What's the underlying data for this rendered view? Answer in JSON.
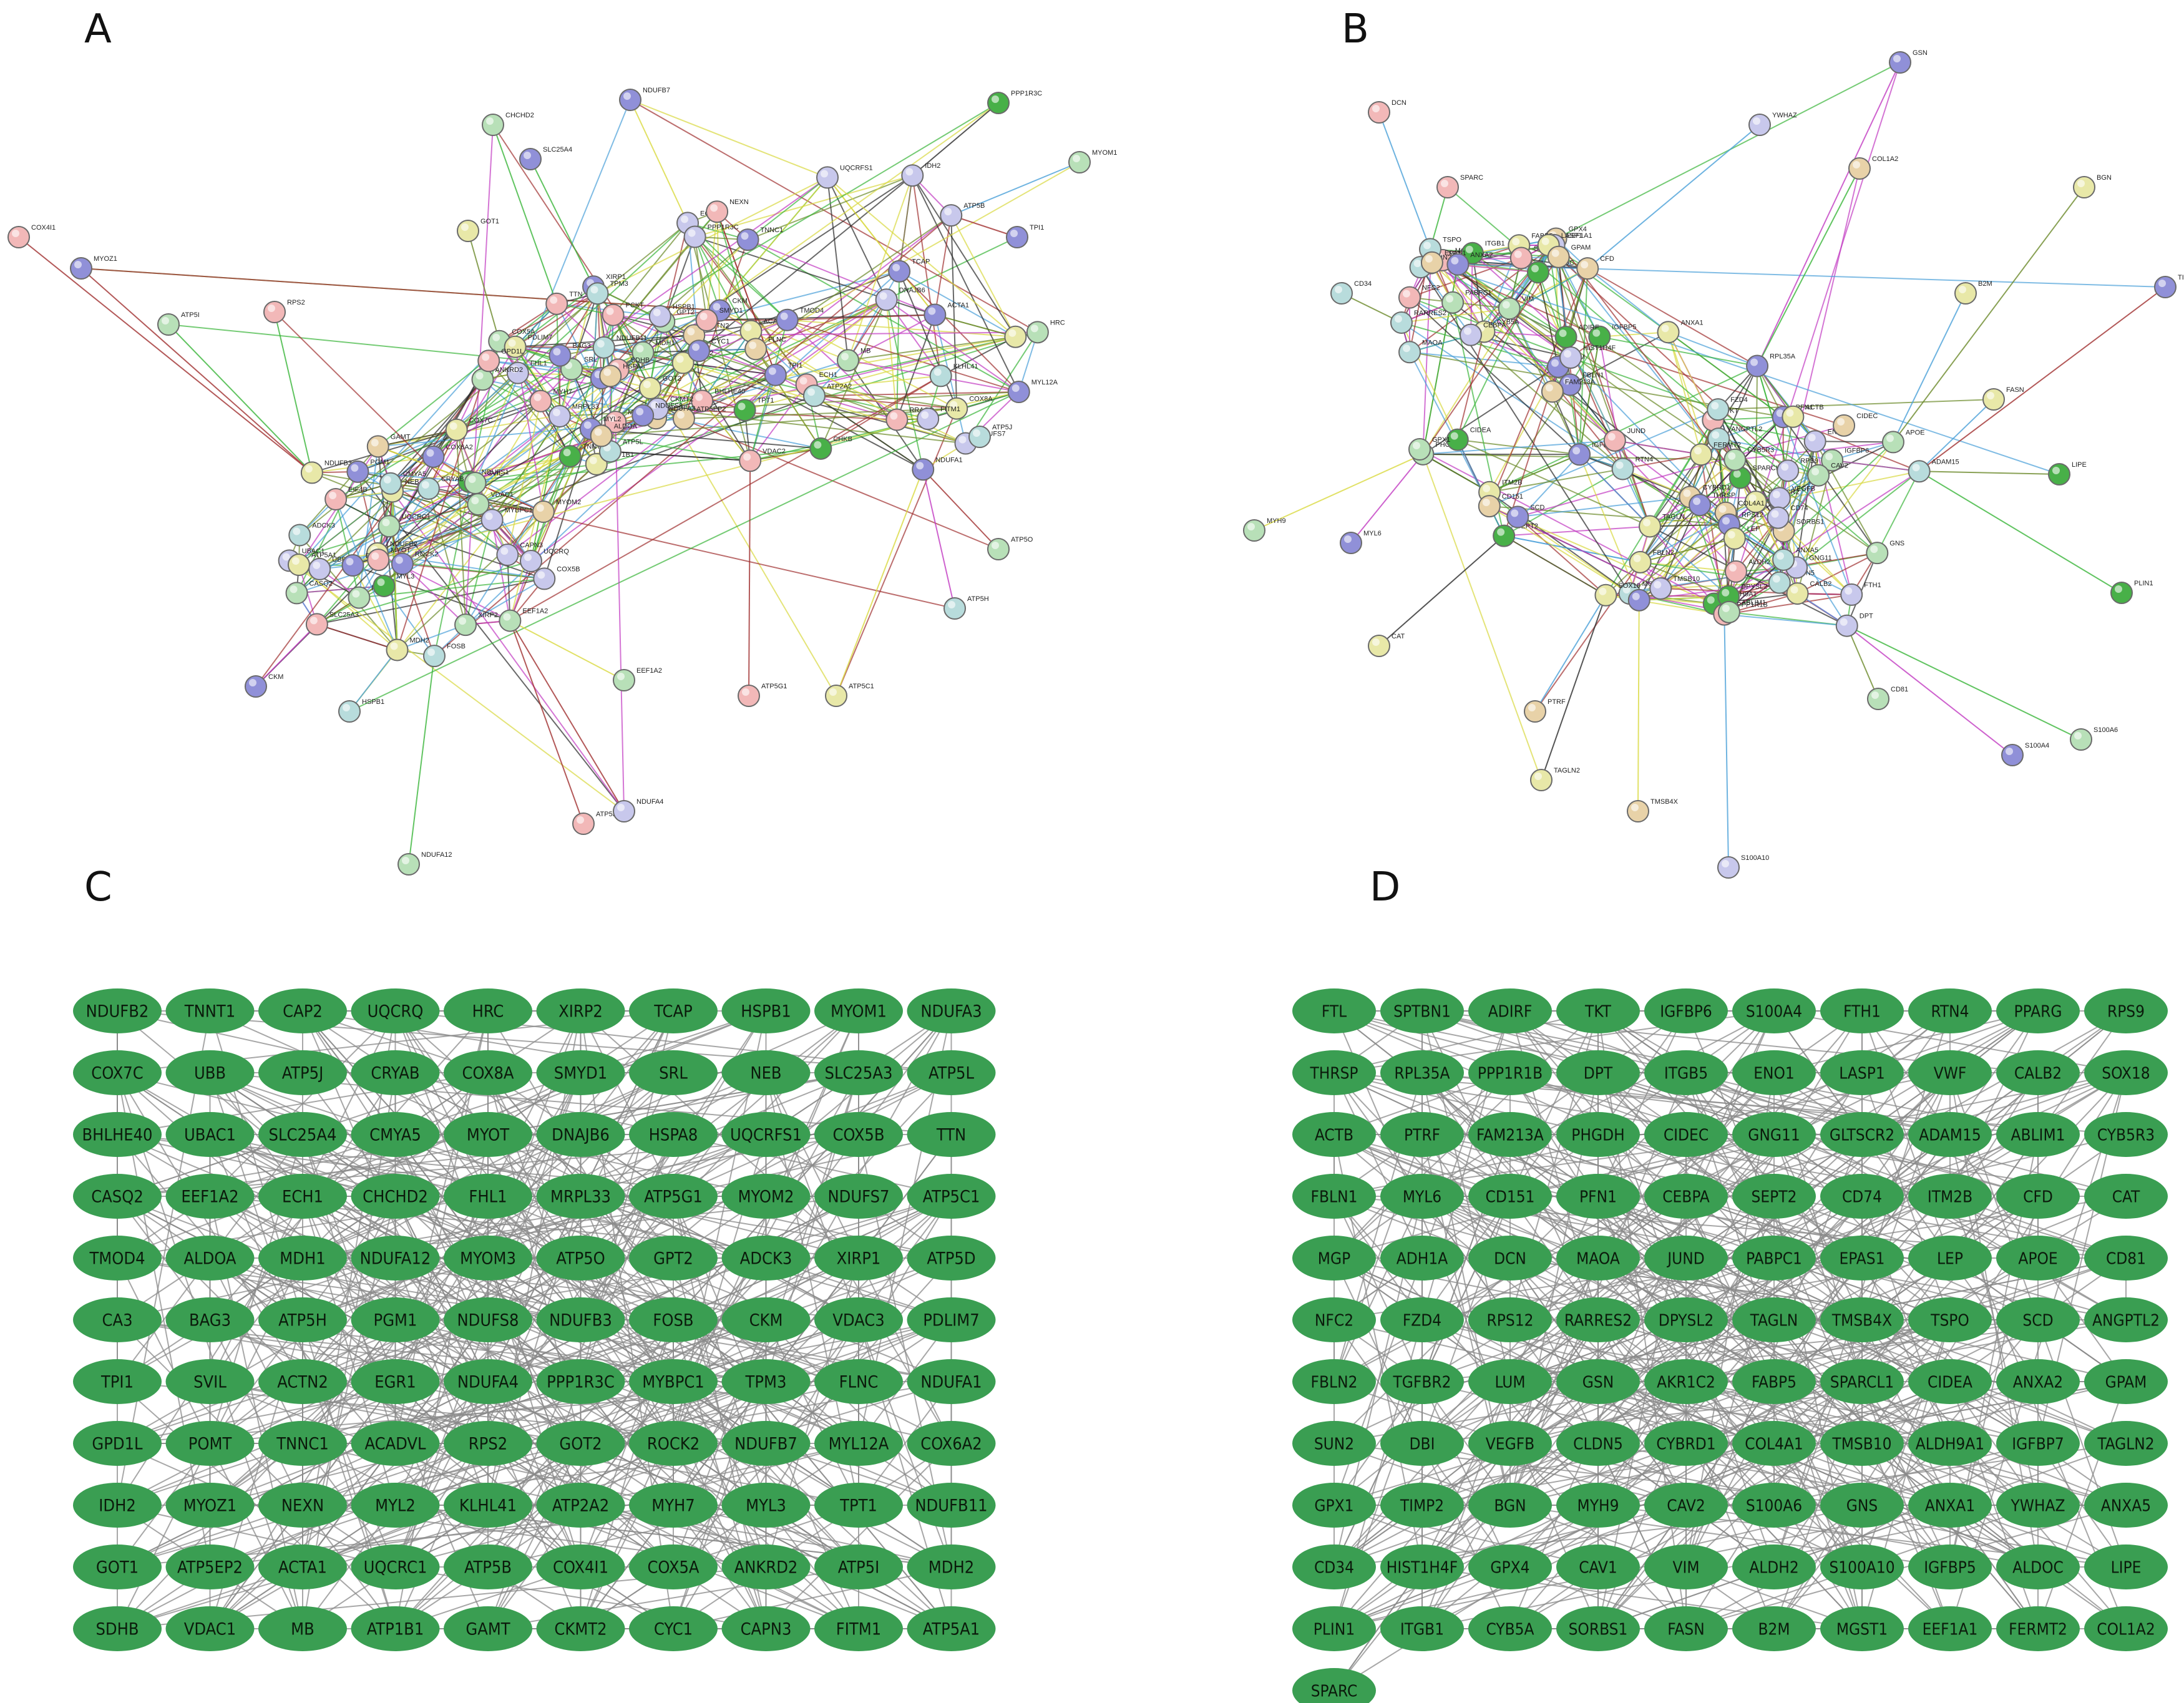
{
  "panels": {
    "A": "A",
    "B": "B",
    "C": "C",
    "D": "D"
  },
  "colors": {
    "grid_node": "#3a9e52",
    "grid_edge": "#8a8a8a",
    "string_edges": [
      "#c23bc2",
      "#3ab53a",
      "#2a2a2a",
      "#d9d940",
      "#6b8a2a",
      "#4aa0d8",
      "#a03030"
    ],
    "string_nodes": [
      "#b8e0b8",
      "#c8c8ec",
      "#e8d2a8",
      "#f2b8b8",
      "#b8dcdc",
      "#e8e8a8",
      "#9090d8",
      "#48b048"
    ]
  },
  "network_A": {
    "nodes": [
      "FOSB",
      "EGR1",
      "BHLHE40",
      "ROCK2",
      "MYL12A",
      "CAP2",
      "UBB",
      "PPP1R3C",
      "PCKT",
      "UBAC1",
      "TPT1",
      "ATP5EP2",
      "NDUFS1",
      "NDUFA1",
      "NDUFA3",
      "NDUFB2",
      "COX8A",
      "NDUFB11",
      "NDUFB3",
      "CHKB",
      "MRPL33",
      "ADCK3",
      "ECH1",
      "GPT2",
      "SLC25A3",
      "ACADVL",
      "ATP1B1",
      "EIF4B",
      "RRAGD",
      "CA3",
      "GAMT",
      "FITM1",
      "XIRP1",
      "MPZ",
      "NEXN",
      "FHL1",
      "COX7C",
      "VDAC2",
      "MYOM3",
      "MYOM2",
      "MB",
      "TNNT1",
      "CRYAB",
      "HSPB1",
      "MYH7",
      "MYL3",
      "TCAP",
      "TTN",
      "DES",
      "CKM",
      "CKMT2",
      "ATP5A1",
      "ATP5B",
      "ATP5L",
      "UQCRC1",
      "UQCRFS1",
      "COX5A",
      "COX5B",
      "GOT2",
      "MDH1",
      "MDH2",
      "IDH2",
      "SDHB",
      "VDAC1",
      "ACTA1",
      "ACTN2",
      "PGM1",
      "TPI1",
      "HSPA8",
      "EEF1A2",
      "KLHL41",
      "ANKRD2",
      "XIRP2",
      "SMYD1",
      "SRL",
      "NEB",
      "FLNC",
      "TPM3",
      "MYOT",
      "DNAJB6",
      "BAG3",
      "SVIL",
      "TNNC1",
      "MYL2",
      "CMYA5",
      "LDB3",
      "PDLIM7",
      "COX6A2",
      "ATP2A2",
      "CYC1",
      "CAPN3",
      "TMOD4",
      "GPD1L",
      "CASQ2",
      "HRC",
      "ALDOA",
      "MYBPC1",
      "NDUFS7",
      "NDUFS8",
      "UQCRQ",
      "COX4I1",
      "MYOZ1",
      "ATP5I",
      "ATP5J",
      "ATP5O",
      "ATP5H",
      "ATP5G1",
      "ATP5C1",
      "ATP5D",
      "NDUFA4",
      "NDUFA12",
      "NDUFB7",
      "CHCHD2",
      "SLC25A4",
      "GOT1",
      "RPS2",
      "PPP1R3C",
      "MYOM1",
      "TPI1",
      "CKM",
      "HSPB1",
      "EEF1A2"
    ],
    "edge_count": 600
  },
  "network_B": {
    "nodes": [
      "RTN4",
      "IGFBP6",
      "IGFBP5",
      "IGFBP7",
      "DPT",
      "MAOA",
      "ALDH9A1",
      "DPYSL2",
      "AKR1C2",
      "GLTSCR2",
      "SPARCL1",
      "LUM",
      "MGP",
      "ALDH2",
      "GPX4",
      "PHGDH",
      "TKT",
      "PABPC1",
      "RPL35A",
      "GNS",
      "FBLN1",
      "FBLN2",
      "COL4A1",
      "MGST1",
      "ANGPTL2",
      "ENO1",
      "ALDOC",
      "RPS12",
      "RPS9",
      "EEF1A1",
      "ITM2B",
      "FTH1",
      "TSPO",
      "CYBRD1",
      "ADAM15",
      "SUN2",
      "CAV2",
      "TAGLN",
      "FABP5",
      "VEGFB",
      "SORBS1",
      "SPTBN1",
      "CD151",
      "FERMT2",
      "ITGB1",
      "ITGB5",
      "PFN1",
      "CYB5A",
      "CYB5R3",
      "CD74",
      "EPAS1",
      "SEPT2",
      "CLDN5",
      "HIST1H4F",
      "SOX18",
      "CALB2",
      "NFC2",
      "TMSB10",
      "PPP1R1B",
      "RARRES2",
      "FAM213A",
      "THRSP",
      "LASP1",
      "CIDEA",
      "CIDEC",
      "GPAM",
      "FZD4",
      "GNG11",
      "ADIRF",
      "JUND",
      "ABLIM1",
      "CFD",
      "SCD",
      "LEP",
      "VIM",
      "ACTB",
      "APOE",
      "ANXA2",
      "ANXA1",
      "ANXA5",
      "CEBPA",
      "GSN",
      "DCN",
      "BGN",
      "TIMP2",
      "MYH9",
      "MYL6",
      "S100A4",
      "S100A6",
      "S100A10",
      "TMSB4X",
      "TAGLN2",
      "PTRF",
      "CD81",
      "CAT",
      "PLIN1",
      "LIPE",
      "FASN",
      "B2M",
      "COL1A2",
      "YWHAZ",
      "SPARC",
      "GPX1",
      "CD34"
    ],
    "edge_count": 520
  },
  "grid_C": {
    "rows": [
      [
        "NDUFB2",
        "TNNT1",
        "CAP2",
        "UQCRQ",
        "HRC",
        "XIRP2",
        "TCAP",
        "HSPB1",
        "MYOM1",
        "NDUFA3"
      ],
      [
        "COX7C",
        "UBB",
        "ATP5J",
        "CRYAB",
        "COX8A",
        "SMYD1",
        "SRL",
        "NEB",
        "SLC25A3",
        "ATP5L"
      ],
      [
        "BHLHE40",
        "UBAC1",
        "SLC25A4",
        "CMYA5",
        "MYOT",
        "DNAJB6",
        "HSPA8",
        "UQCRFS1",
        "COX5B",
        "TTN"
      ],
      [
        "CASQ2",
        "EEF1A2",
        "ECH1",
        "CHCHD2",
        "FHL1",
        "MRPL33",
        "ATP5G1",
        "MYOM2",
        "NDUFS7",
        "ATP5C1"
      ],
      [
        "TMOD4",
        "ALDOA",
        "MDH1",
        "NDUFA12",
        "MYOM3",
        "ATP5O",
        "GPT2",
        "ADCK3",
        "XIRP1",
        "ATP5D"
      ],
      [
        "CA3",
        "BAG3",
        "ATP5H",
        "PGM1",
        "NDUFS8",
        "NDUFB3",
        "FOSB",
        "CKM",
        "VDAC3",
        "PDLIM7"
      ],
      [
        "TPI1",
        "SVIL",
        "ACTN2",
        "EGR1",
        "NDUFA4",
        "PPP1R3C",
        "MYBPC1",
        "TPM3",
        "FLNC",
        "NDUFA1"
      ],
      [
        "GPD1L",
        "POMT",
        "TNNC1",
        "ACADVL",
        "RPS2",
        "GOT2",
        "ROCK2",
        "NDUFB7",
        "MYL12A",
        "COX6A2"
      ],
      [
        "IDH2",
        "MYOZ1",
        "NEXN",
        "MYL2",
        "KLHL41",
        "ATP2A2",
        "MYH7",
        "MYL3",
        "TPT1",
        "NDUFB11"
      ],
      [
        "GOT1",
        "ATP5EP2",
        "ACTA1",
        "UQCRC1",
        "ATP5B",
        "COX4I1",
        "COX5A",
        "ANKRD2",
        "ATP5I",
        "MDH2"
      ],
      [
        "SDHB",
        "VDAC1",
        "MB",
        "ATP1B1",
        "GAMT",
        "CKMT2",
        "CYC1",
        "CAPN3",
        "FITM1",
        "ATP5A1"
      ]
    ]
  },
  "grid_D": {
    "rows": [
      [
        "FTL",
        "SPTBN1",
        "ADIRF",
        "TKT",
        "IGFBP6",
        "S100A4",
        "FTH1",
        "RTN4",
        "PPARG",
        "RPS9"
      ],
      [
        "THRSP",
        "RPL35A",
        "PPP1R1B",
        "DPT",
        "ITGB5",
        "ENO1",
        "LASP1",
        "VWF",
        "CALB2",
        "SOX18"
      ],
      [
        "ACTB",
        "PTRF",
        "FAM213A",
        "PHGDH",
        "CIDEC",
        "GNG11",
        "GLTSCR2",
        "ADAM15",
        "ABLIM1",
        "CYB5R3"
      ],
      [
        "FBLN1",
        "MYL6",
        "CD151",
        "PFN1",
        "CEBPA",
        "SEPT2",
        "CD74",
        "ITM2B",
        "CFD",
        "CAT"
      ],
      [
        "MGP",
        "ADH1A",
        "DCN",
        "MAOA",
        "JUND",
        "PABPC1",
        "EPAS1",
        "LEP",
        "APOE",
        "CD81"
      ],
      [
        "NFC2",
        "FZD4",
        "RPS12",
        "RARRES2",
        "DPYSL2",
        "TAGLN",
        "TMSB4X",
        "TSPO",
        "SCD",
        "ANGPTL2"
      ],
      [
        "FBLN2",
        "TGFBR2",
        "LUM",
        "GSN",
        "AKR1C2",
        "FABP5",
        "SPARCL1",
        "CIDEA",
        "ANXA2",
        "GPAM"
      ],
      [
        "SUN2",
        "DBI",
        "VEGFB",
        "CLDN5",
        "CYBRD1",
        "COL4A1",
        "TMSB10",
        "ALDH9A1",
        "IGFBP7",
        "TAGLN2"
      ],
      [
        "GPX1",
        "TIMP2",
        "BGN",
        "MYH9",
        "CAV2",
        "S100A6",
        "GNS",
        "ANXA1",
        "YWHAZ",
        "ANXA5"
      ],
      [
        "CD34",
        "HIST1H4F",
        "GPX4",
        "CAV1",
        "VIM",
        "ALDH2",
        "S100A10",
        "IGFBP5",
        "ALDOC",
        "LIPE"
      ],
      [
        "PLIN1",
        "ITGB1",
        "CYB5A",
        "SORBS1",
        "FASN",
        "B2M",
        "MGST1",
        "EEF1A1",
        "FERMT2",
        "COL1A2"
      ],
      [
        "SPARC"
      ]
    ]
  }
}
